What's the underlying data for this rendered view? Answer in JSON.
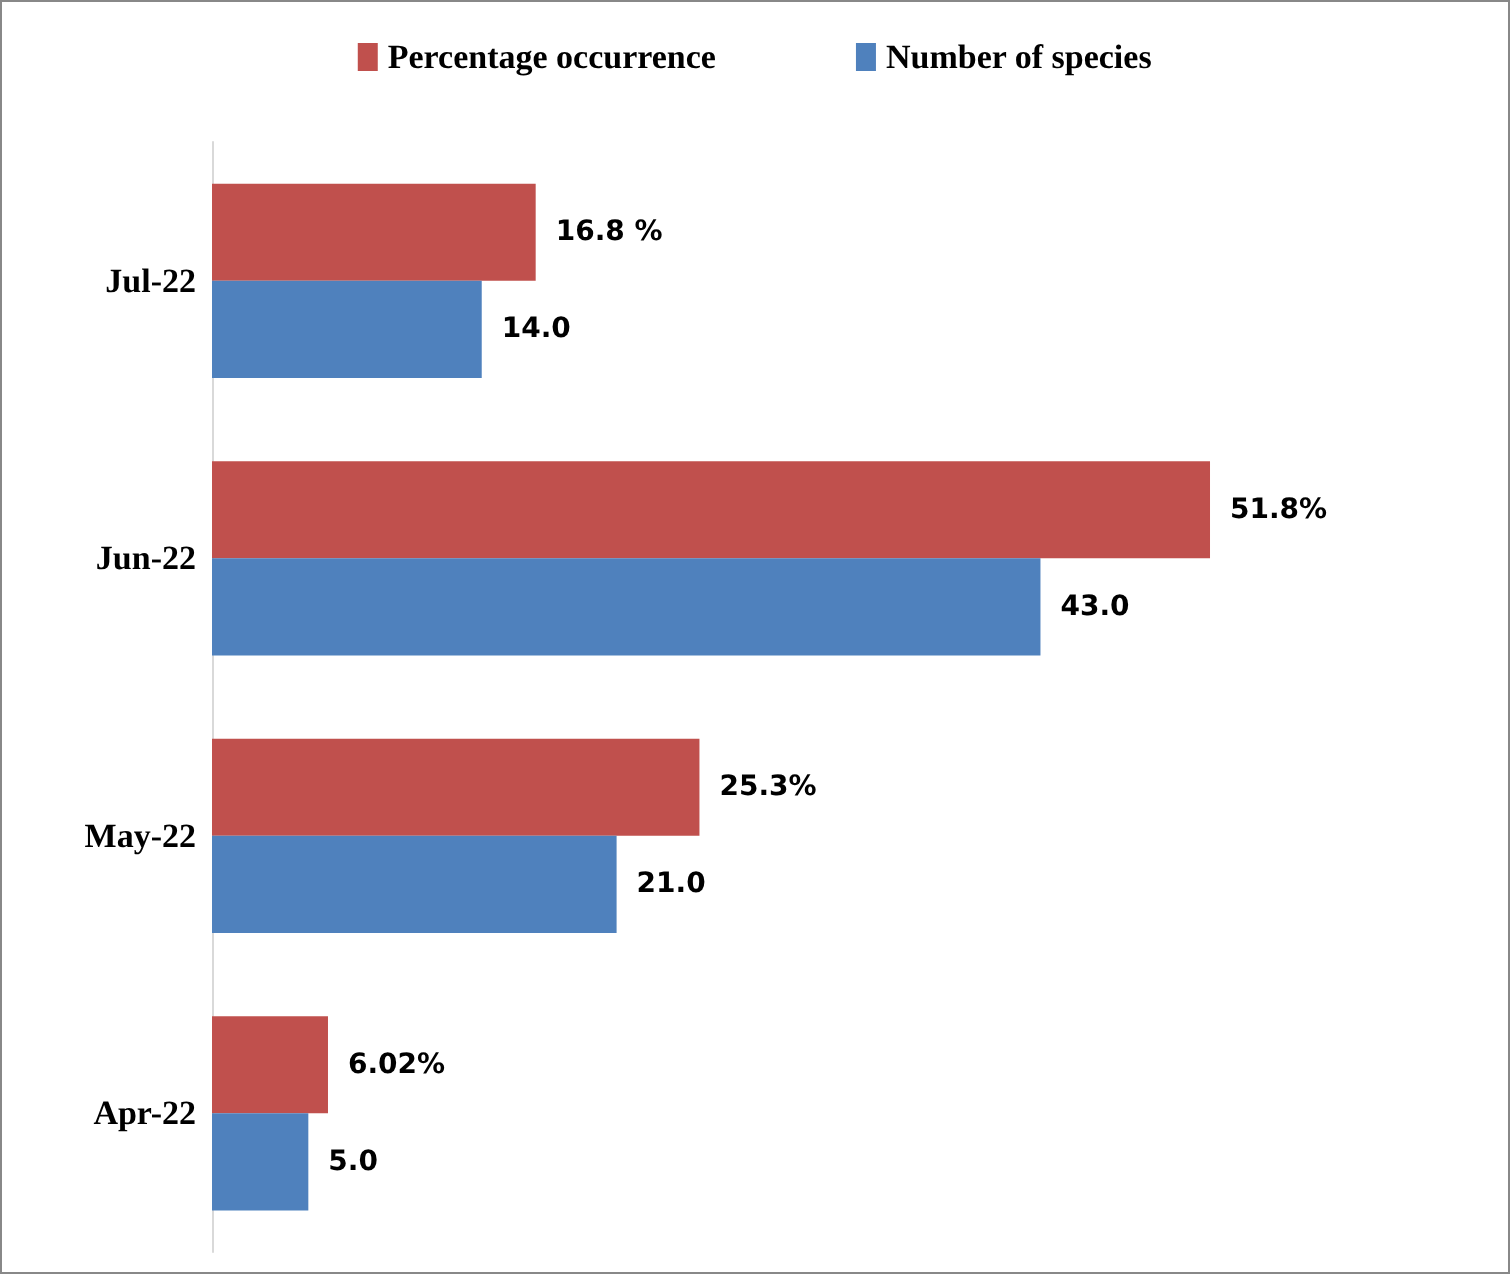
{
  "chart_data": {
    "type": "bar",
    "orientation": "horizontal",
    "categories": [
      "Jul-22",
      "Jun-22",
      "May-22",
      "Apr-22"
    ],
    "series": [
      {
        "name": "Percentage occurrence",
        "color": "#c0504d",
        "values": [
          16.8,
          51.8,
          25.3,
          6.02
        ],
        "value_labels": [
          "16.8 %",
          "51.8%",
          "25.3%",
          "6.02%"
        ]
      },
      {
        "name": "Number of species",
        "color": "#4f81bd",
        "values": [
          14.0,
          43.0,
          21.0,
          5.0
        ],
        "value_labels": [
          "14.0",
          "43.0",
          "21.0",
          "5.0"
        ]
      }
    ],
    "legend": "top"
  }
}
